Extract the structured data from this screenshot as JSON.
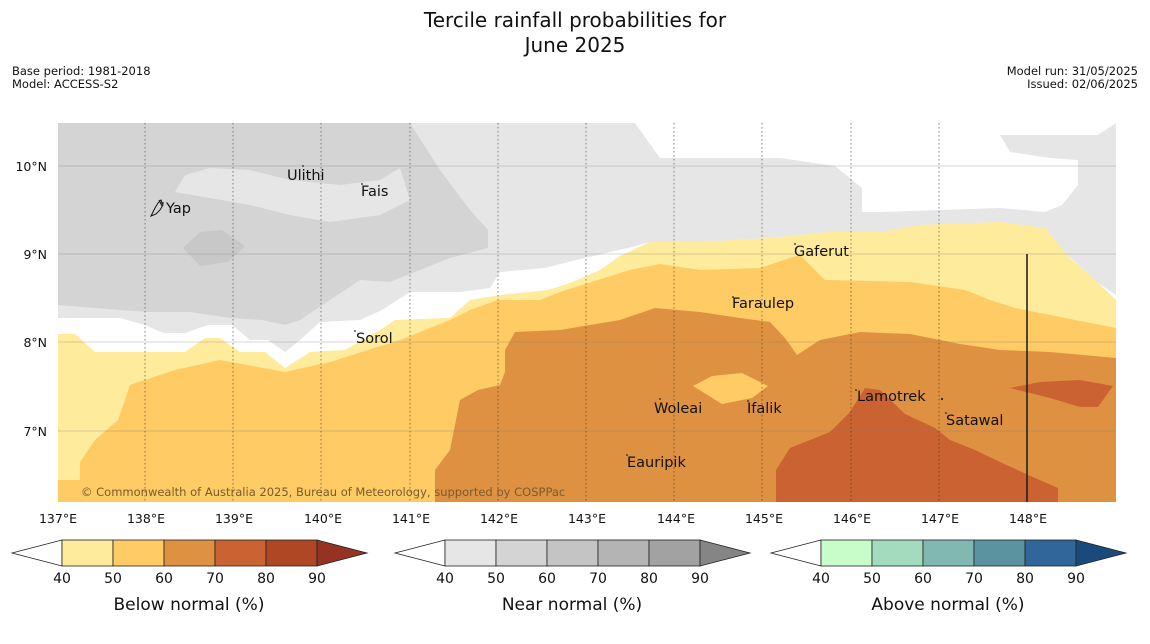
{
  "title_line1": "Tercile rainfall probabilities for",
  "title_line2": "June 2025",
  "meta": {
    "base_period": "Base period: 1981-2018",
    "model": "Model: ACCESS-S2",
    "model_run": "Model run: 31/05/2025",
    "issued": "Issued: 02/06/2025"
  },
  "map": {
    "lon_labels": [
      "137°E",
      "138°E",
      "139°E",
      "140°E",
      "141°E",
      "142°E",
      "143°E",
      "144°E",
      "145°E",
      "146°E",
      "147°E",
      "148°E"
    ],
    "lat_labels": [
      "10°N",
      "9°N",
      "8°N",
      "7°N"
    ],
    "places": [
      "Yap",
      "Ulithi",
      "Fais",
      "Gaferut",
      "Faraulep",
      "Sorol",
      "Woleai",
      "Ifalik",
      "Lamotrek",
      "Satawal",
      "Eauripik"
    ],
    "copyright": "© Commonwealth of Australia 2025, Bureau of Meteorology, supported by COSPPac"
  },
  "legends": [
    {
      "label": "Below normal (%)",
      "ticks": [
        "40",
        "50",
        "60",
        "70",
        "80",
        "90"
      ],
      "colors": [
        "#ffffff",
        "#ffeb9c",
        "#fecb65",
        "#df9142",
        "#cb6231",
        "#af4725",
        "#963222"
      ]
    },
    {
      "label": "Near normal (%)",
      "ticks": [
        "40",
        "50",
        "60",
        "70",
        "80",
        "90"
      ],
      "colors": [
        "#ffffff",
        "#e6e6e6",
        "#d4d4d4",
        "#c4c4c4",
        "#b4b4b4",
        "#a2a2a2",
        "#858585"
      ]
    },
    {
      "label": "Above normal (%)",
      "ticks": [
        "40",
        "50",
        "60",
        "70",
        "80",
        "90"
      ],
      "colors": [
        "#ffffff",
        "#c8fcc8",
        "#a3dbbe",
        "#81b8b1",
        "#5c93a0",
        "#31669a",
        "#1a4a7c"
      ]
    }
  ]
}
